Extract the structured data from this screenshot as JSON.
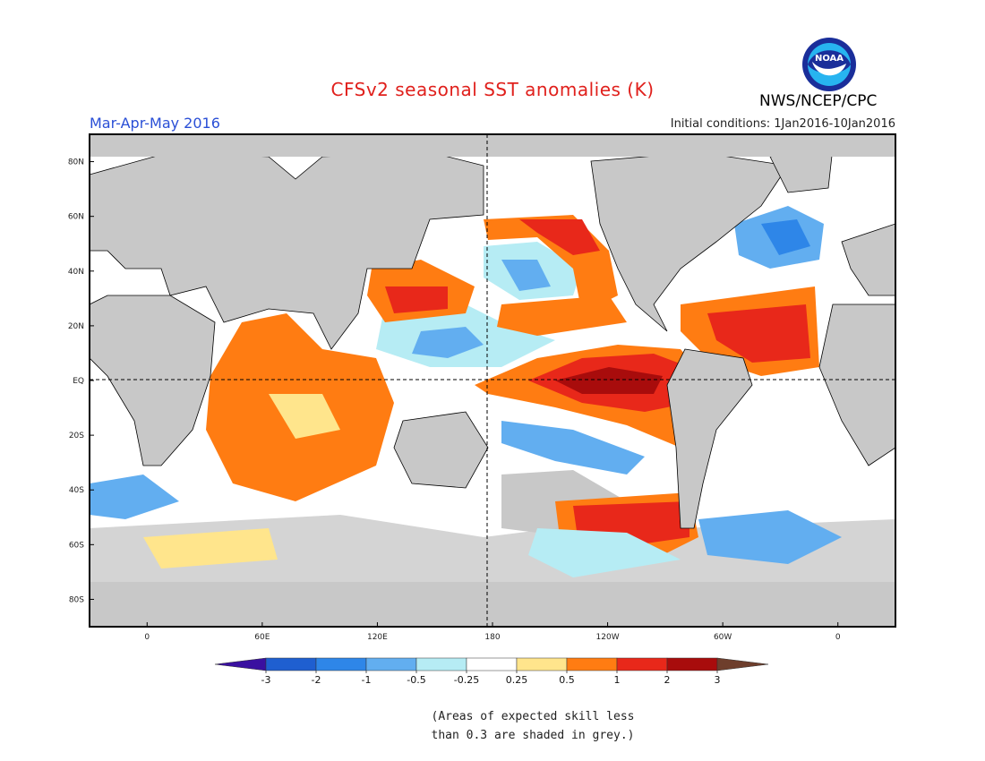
{
  "header": {
    "title": "CFSv2 seasonal SST anomalies (K)",
    "period": "Mar-Apr-May 2016",
    "initial_conditions": "Initial conditions: 1Jan2016-10Jan2016",
    "agency": "NWS/NCEP/CPC",
    "logo_text": "NOAA"
  },
  "map": {
    "projection": "cylindrical equidistant",
    "lon_range_deg": [
      -30,
      390
    ],
    "lat_range_deg": [
      -90,
      90
    ],
    "lat_labels": [
      "80N",
      "60N",
      "40N",
      "20N",
      "EQ",
      "20S",
      "40S",
      "60S",
      "80S"
    ],
    "lon_labels": [
      "0",
      "60E",
      "120E",
      "180",
      "120W",
      "60W",
      "0"
    ],
    "dashed_lines": [
      "Equator",
      "180 meridian"
    ],
    "land_color": "#c8c8c8"
  },
  "colorbar": {
    "levels": [
      "-3",
      "-2",
      "-1",
      "-0.5",
      "-0.25",
      "0.25",
      "0.5",
      "1",
      "2",
      "3"
    ],
    "colors": [
      "#3a10a0",
      "#1f5fd0",
      "#2e86e8",
      "#62aef0",
      "#b6ecf4",
      "#ffffff",
      "#ffe58c",
      "#ff7c12",
      "#e8281a",
      "#a80c0c",
      "#6e3e2c"
    ]
  },
  "footnote": {
    "line1": "(Areas of expected skill less",
    "line2": "than 0.3 are shaded in grey.)"
  }
}
